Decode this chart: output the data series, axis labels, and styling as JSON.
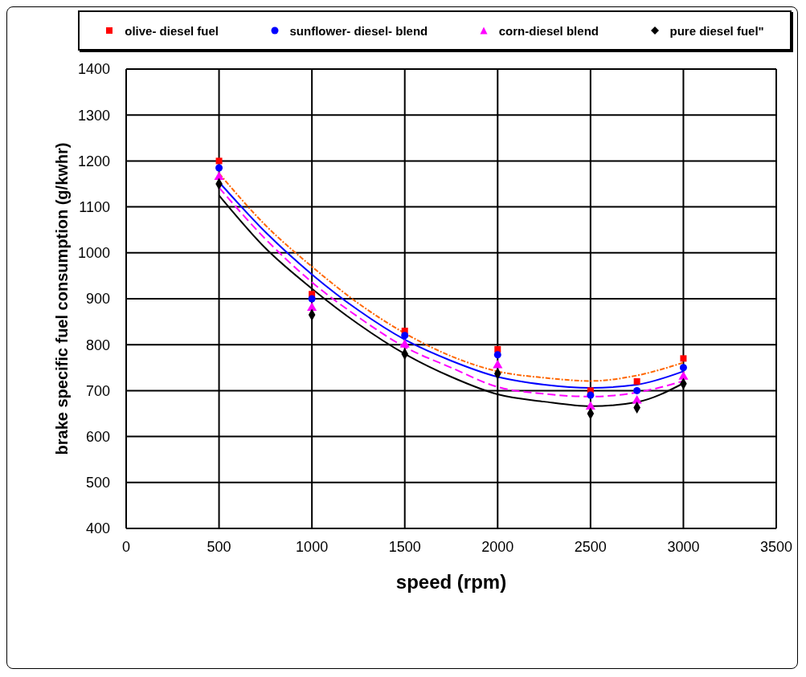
{
  "chart_data": {
    "type": "scatter",
    "xlabel": "speed (rpm)",
    "ylabel": "brake specific fuel consumption (g/kwhr)",
    "x": [
      500,
      1000,
      1500,
      2000,
      2500,
      2750,
      3000
    ],
    "xlim": [
      0,
      3500
    ],
    "xticks": [
      0,
      500,
      1000,
      1500,
      2000,
      2500,
      3000,
      3500
    ],
    "ylim": [
      400,
      1400
    ],
    "yticks": [
      400,
      500,
      600,
      700,
      800,
      900,
      1000,
      1100,
      1200,
      1300,
      1400
    ],
    "grid": true,
    "legend": "top",
    "series": [
      {
        "name": "olive- diesel fuel",
        "marker": "square",
        "color": "#ff0000",
        "values": [
          1200,
          910,
          830,
          790,
          700,
          720,
          770
        ]
      },
      {
        "name": "sunflower- diesel- blend",
        "marker": "circle",
        "color": "#0000ff",
        "values": [
          1185,
          900,
          820,
          778,
          690,
          700,
          750
        ]
      },
      {
        "name": "corn-diesel blend",
        "marker": "triangle",
        "color": "#ff00ff",
        "values": [
          1165,
          880,
          800,
          755,
          665,
          678,
          730
        ]
      },
      {
        "name": "pure diesel fuel\"",
        "marker": "diamond",
        "color": "#000000",
        "values": [
          1150,
          865,
          780,
          737,
          650,
          663,
          715
        ]
      },
      {
        "type": "line",
        "marker": "none",
        "line_style": "dotted",
        "color": "#ff6600",
        "x": [
          500,
          750,
          1000,
          1250,
          1500,
          1750,
          2000,
          2250,
          2500,
          2750,
          3000
        ],
        "values": [
          1173,
          1060,
          970,
          890,
          825,
          775,
          742,
          728,
          721,
          733,
          761
        ]
      },
      {
        "type": "line",
        "marker": "none",
        "line_style": "solid",
        "color": "#0000ff",
        "x": [
          500,
          750,
          1000,
          1250,
          1500,
          1750,
          2000,
          2250,
          2500,
          2750,
          3000
        ],
        "values": [
          1154,
          1045,
          953,
          875,
          811,
          765,
          730,
          713,
          706,
          713,
          742
        ]
      },
      {
        "type": "line",
        "marker": "none",
        "line_style": "dashed",
        "color": "#ff00ff",
        "x": [
          500,
          750,
          1000,
          1250,
          1500,
          1750,
          2000,
          2250,
          2500,
          2750,
          3000
        ],
        "values": [
          1142,
          1030,
          936,
          860,
          795,
          750,
          708,
          693,
          687,
          696,
          721
        ]
      },
      {
        "type": "line",
        "marker": "none",
        "line_style": "solid",
        "color": "#000000",
        "x": [
          500,
          750,
          1000,
          1250,
          1500,
          1750,
          2000,
          2250,
          2500,
          2750,
          3000
        ],
        "values": [
          1125,
          1010,
          922,
          845,
          780,
          730,
          692,
          676,
          666,
          675,
          716
        ]
      }
    ]
  }
}
